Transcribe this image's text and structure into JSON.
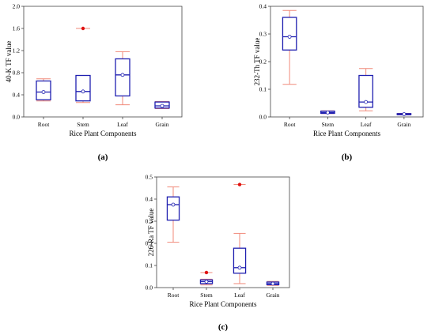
{
  "colors": {
    "box": "#1f1fb0",
    "whisker": "#f08a7a",
    "outlier": "#e01010",
    "median_dot": "#ffffff",
    "frame": "#444444"
  },
  "chart_data": [
    {
      "type": "box",
      "panel_label": "(a)",
      "xlabel": "Rice Plant Components",
      "ylabel": "40-K TF value",
      "ylim": [
        0,
        2.0
      ],
      "yticks": [
        0,
        0.4,
        0.8,
        1.2,
        1.6,
        2.0
      ],
      "ytick_labels": [
        "0.0",
        "0.4",
        "0.8",
        "1.2",
        "1.6",
        "2.0"
      ],
      "categories": [
        "Root",
        "Stem",
        "Leaf",
        "Grain"
      ],
      "boxes": [
        {
          "whisker_low": 0.29,
          "q1": 0.31,
          "median": 0.45,
          "q3": 0.65,
          "whisker_high": 0.69,
          "outliers": []
        },
        {
          "whisker_low": 0.26,
          "q1": 0.29,
          "median": 0.46,
          "q3": 0.75,
          "whisker_high": 0.75,
          "outliers": [
            1.6
          ]
        },
        {
          "whisker_low": 0.22,
          "q1": 0.38,
          "median": 0.76,
          "q3": 1.05,
          "whisker_high": 1.18,
          "outliers": []
        },
        {
          "whisker_low": 0.15,
          "q1": 0.16,
          "median": 0.2,
          "q3": 0.27,
          "whisker_high": 0.28,
          "outliers": []
        }
      ]
    },
    {
      "type": "box",
      "panel_label": "(b)",
      "xlabel": "Rice Plant Components",
      "ylabel": "232-Th TF value",
      "ylim": [
        0,
        0.4
      ],
      "yticks": [
        0,
        0.1,
        0.2,
        0.3,
        0.4
      ],
      "ytick_labels": [
        "0.0",
        "0.1",
        "0.2",
        "0.3",
        "0.4"
      ],
      "categories": [
        "Root",
        "Stem",
        "Leaf",
        "Grain"
      ],
      "boxes": [
        {
          "whisker_low": 0.118,
          "q1": 0.242,
          "median": 0.29,
          "q3": 0.36,
          "whisker_high": 0.385,
          "outliers": []
        },
        {
          "whisker_low": 0.012,
          "q1": 0.013,
          "median": 0.016,
          "q3": 0.021,
          "whisker_high": 0.022,
          "outliers": []
        },
        {
          "whisker_low": 0.022,
          "q1": 0.035,
          "median": 0.054,
          "q3": 0.15,
          "whisker_high": 0.175,
          "outliers": []
        },
        {
          "whisker_low": 0.007,
          "q1": 0.008,
          "median": 0.01,
          "q3": 0.012,
          "whisker_high": 0.013,
          "outliers": []
        }
      ]
    },
    {
      "type": "box",
      "panel_label": "(c)",
      "xlabel": "Rice Plant Components",
      "ylabel": "226-Ra TF value",
      "ylim": [
        0,
        0.5
      ],
      "yticks": [
        0,
        0.1,
        0.2,
        0.3,
        0.4,
        0.5
      ],
      "ytick_labels": [
        "0.0",
        "0.1",
        "0.2",
        "0.3",
        "0.4",
        "0.5"
      ],
      "categories": [
        "Root",
        "Stem",
        "Leaf",
        "Grain"
      ],
      "boxes": [
        {
          "whisker_low": 0.205,
          "q1": 0.305,
          "median": 0.375,
          "q3": 0.41,
          "whisker_high": 0.455,
          "outliers": []
        },
        {
          "whisker_low": 0.012,
          "q1": 0.018,
          "median": 0.027,
          "q3": 0.035,
          "whisker_high": 0.038,
          "outliers": [
            0.068
          ]
        },
        {
          "whisker_low": 0.018,
          "q1": 0.065,
          "median": 0.09,
          "q3": 0.178,
          "whisker_high": 0.245,
          "outliers": [
            0.466
          ]
        },
        {
          "whisker_low": 0.01,
          "q1": 0.013,
          "median": 0.018,
          "q3": 0.025,
          "whisker_high": 0.028,
          "outliers": []
        }
      ]
    }
  ]
}
